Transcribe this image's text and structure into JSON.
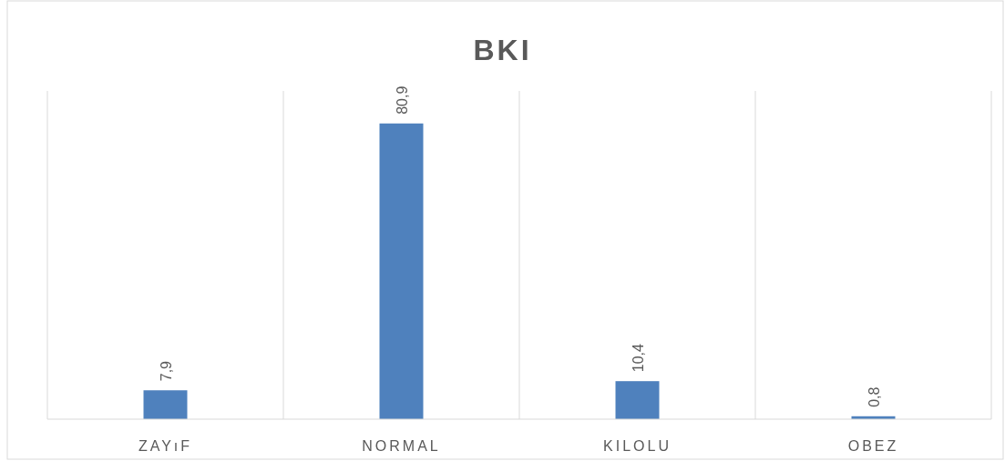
{
  "chart_data": {
    "type": "bar",
    "title": "BKI",
    "categories": [
      "ZAYıF",
      "NORMAL",
      "KILOLU",
      "OBEZ"
    ],
    "values": [
      7.9,
      80.9,
      10.4,
      0.8
    ],
    "value_labels": [
      "7,9",
      "80,9",
      "10,4",
      "0,8"
    ],
    "color": "#4f81bd",
    "grid": "x"
  }
}
